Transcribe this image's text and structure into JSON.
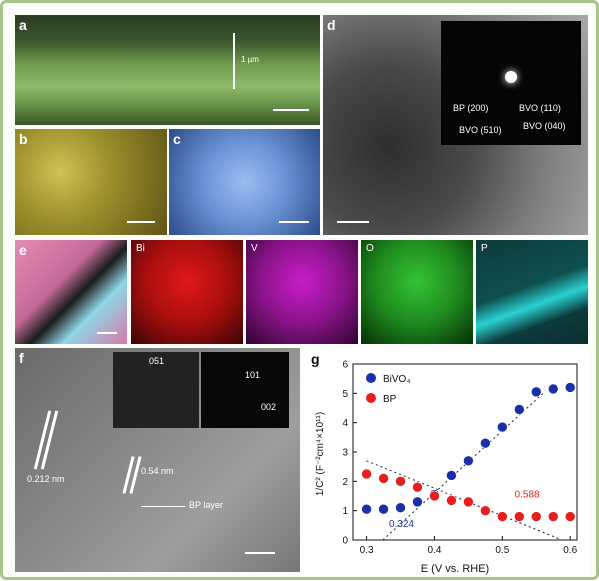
{
  "panels": {
    "a": {
      "label": "a",
      "thickness": "1 µm"
    },
    "b": {
      "label": "b"
    },
    "c": {
      "label": "c"
    },
    "d": {
      "label": "d",
      "saed": [
        "BP (200)",
        "BVO (110)",
        "BVO (510)",
        "BVO (040)"
      ]
    },
    "e": {
      "label": "e",
      "maps": [
        "Bi",
        "V",
        "O",
        "P"
      ]
    },
    "f": {
      "label": "f",
      "fft1": "051",
      "fft2_a": "101",
      "fft2_b": "002",
      "d1": "0.212 nm",
      "d2": "0.54 nm",
      "bp": "BP layer"
    },
    "g": {
      "label": "g"
    }
  },
  "colors": {
    "border": "#a9c489",
    "bivo4": "#1a2fa8",
    "bp": "#e81e1e",
    "sem_a": "#7fae5a",
    "sem_b": "#b6a83a",
    "sem_c": "#6f96d6",
    "tem": "#6b6b6b"
  },
  "chart_data": {
    "type": "scatter",
    "ylabel": "1/C² (F⁻²cm⁴×10¹¹)",
    "xlabel": "E (V vs. RHE)",
    "xlim": [
      0.28,
      0.61
    ],
    "ylim": [
      0,
      6
    ],
    "xticks": [
      "0.3",
      "0.4",
      "0.5",
      "0.6"
    ],
    "yticks": [
      "0",
      "1",
      "2",
      "3",
      "4",
      "5",
      "6"
    ],
    "legend_placement": "top-left",
    "series": [
      {
        "name": "BiVO₄",
        "color": "#1a2fa8",
        "x": [
          0.3,
          0.325,
          0.35,
          0.375,
          0.4,
          0.425,
          0.45,
          0.475,
          0.5,
          0.525,
          0.55,
          0.575,
          0.6
        ],
        "y": [
          1.05,
          1.05,
          1.1,
          1.3,
          1.55,
          2.2,
          2.7,
          3.3,
          3.85,
          4.45,
          5.05,
          5.15,
          5.2
        ]
      },
      {
        "name": "BP",
        "color": "#e81e1e",
        "x": [
          0.3,
          0.325,
          0.35,
          0.375,
          0.4,
          0.425,
          0.45,
          0.475,
          0.5,
          0.525,
          0.55,
          0.575,
          0.6
        ],
        "y": [
          2.25,
          2.1,
          2.0,
          1.8,
          1.5,
          1.35,
          1.3,
          1.0,
          0.8,
          0.8,
          0.8,
          0.8,
          0.8
        ]
      }
    ],
    "fits": [
      {
        "series": "BiVO₄",
        "x": [
          0.324,
          0.56
        ],
        "y": [
          0,
          5.0
        ]
      },
      {
        "series": "BP",
        "x": [
          0.3,
          0.588
        ],
        "y": [
          2.7,
          0
        ]
      }
    ],
    "annotations": [
      {
        "text": "0.324",
        "x": 0.333,
        "y": 0.45,
        "color": "#1a2fa8"
      },
      {
        "text": "0.588",
        "x": 0.518,
        "y": 1.45,
        "color": "#e81e1e"
      }
    ]
  }
}
